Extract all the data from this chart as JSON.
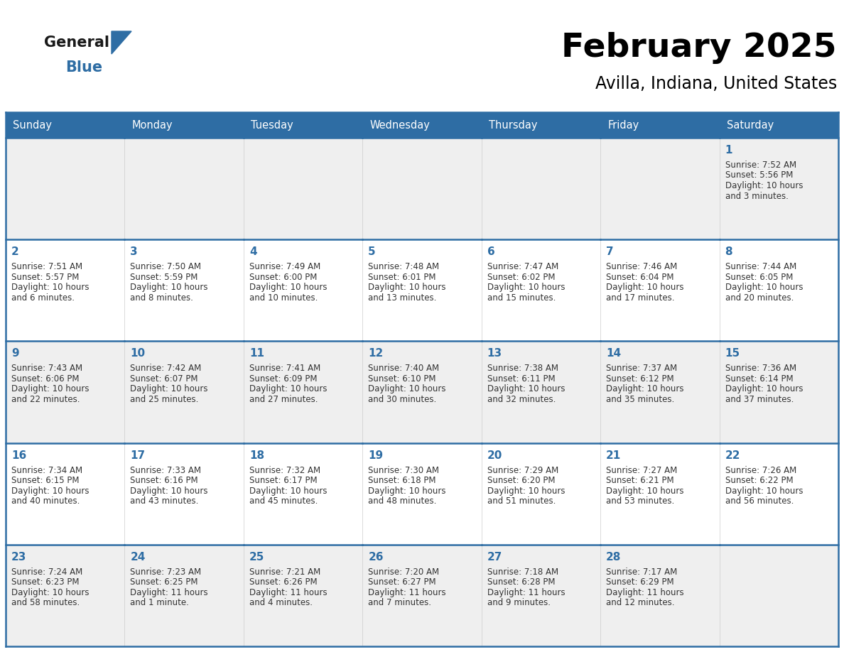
{
  "title": "February 2025",
  "subtitle": "Avilla, Indiana, United States",
  "header_bg": "#2E6DA4",
  "header_text_color": "#FFFFFF",
  "cell_bg_odd": "#EFEFEF",
  "cell_bg_even": "#FFFFFF",
  "cell_border_color": "#2E6DA4",
  "day_number_color": "#2E6DA4",
  "info_text_color": "#333333",
  "days_of_week": [
    "Sunday",
    "Monday",
    "Tuesday",
    "Wednesday",
    "Thursday",
    "Friday",
    "Saturday"
  ],
  "calendar": [
    [
      null,
      null,
      null,
      null,
      null,
      null,
      1
    ],
    [
      2,
      3,
      4,
      5,
      6,
      7,
      8
    ],
    [
      9,
      10,
      11,
      12,
      13,
      14,
      15
    ],
    [
      16,
      17,
      18,
      19,
      20,
      21,
      22
    ],
    [
      23,
      24,
      25,
      26,
      27,
      28,
      null
    ]
  ],
  "cell_data": {
    "1": {
      "sunrise": "7:52 AM",
      "sunset": "5:56 PM",
      "daylight_hours": "10 hours",
      "daylight_mins": "3 minutes"
    },
    "2": {
      "sunrise": "7:51 AM",
      "sunset": "5:57 PM",
      "daylight_hours": "10 hours",
      "daylight_mins": "6 minutes"
    },
    "3": {
      "sunrise": "7:50 AM",
      "sunset": "5:59 PM",
      "daylight_hours": "10 hours",
      "daylight_mins": "8 minutes"
    },
    "4": {
      "sunrise": "7:49 AM",
      "sunset": "6:00 PM",
      "daylight_hours": "10 hours",
      "daylight_mins": "10 minutes"
    },
    "5": {
      "sunrise": "7:48 AM",
      "sunset": "6:01 PM",
      "daylight_hours": "10 hours",
      "daylight_mins": "13 minutes"
    },
    "6": {
      "sunrise": "7:47 AM",
      "sunset": "6:02 PM",
      "daylight_hours": "10 hours",
      "daylight_mins": "15 minutes"
    },
    "7": {
      "sunrise": "7:46 AM",
      "sunset": "6:04 PM",
      "daylight_hours": "10 hours",
      "daylight_mins": "17 minutes"
    },
    "8": {
      "sunrise": "7:44 AM",
      "sunset": "6:05 PM",
      "daylight_hours": "10 hours",
      "daylight_mins": "20 minutes"
    },
    "9": {
      "sunrise": "7:43 AM",
      "sunset": "6:06 PM",
      "daylight_hours": "10 hours",
      "daylight_mins": "22 minutes"
    },
    "10": {
      "sunrise": "7:42 AM",
      "sunset": "6:07 PM",
      "daylight_hours": "10 hours",
      "daylight_mins": "25 minutes"
    },
    "11": {
      "sunrise": "7:41 AM",
      "sunset": "6:09 PM",
      "daylight_hours": "10 hours",
      "daylight_mins": "27 minutes"
    },
    "12": {
      "sunrise": "7:40 AM",
      "sunset": "6:10 PM",
      "daylight_hours": "10 hours",
      "daylight_mins": "30 minutes"
    },
    "13": {
      "sunrise": "7:38 AM",
      "sunset": "6:11 PM",
      "daylight_hours": "10 hours",
      "daylight_mins": "32 minutes"
    },
    "14": {
      "sunrise": "7:37 AM",
      "sunset": "6:12 PM",
      "daylight_hours": "10 hours",
      "daylight_mins": "35 minutes"
    },
    "15": {
      "sunrise": "7:36 AM",
      "sunset": "6:14 PM",
      "daylight_hours": "10 hours",
      "daylight_mins": "37 minutes"
    },
    "16": {
      "sunrise": "7:34 AM",
      "sunset": "6:15 PM",
      "daylight_hours": "10 hours",
      "daylight_mins": "40 minutes"
    },
    "17": {
      "sunrise": "7:33 AM",
      "sunset": "6:16 PM",
      "daylight_hours": "10 hours",
      "daylight_mins": "43 minutes"
    },
    "18": {
      "sunrise": "7:32 AM",
      "sunset": "6:17 PM",
      "daylight_hours": "10 hours",
      "daylight_mins": "45 minutes"
    },
    "19": {
      "sunrise": "7:30 AM",
      "sunset": "6:18 PM",
      "daylight_hours": "10 hours",
      "daylight_mins": "48 minutes"
    },
    "20": {
      "sunrise": "7:29 AM",
      "sunset": "6:20 PM",
      "daylight_hours": "10 hours",
      "daylight_mins": "51 minutes"
    },
    "21": {
      "sunrise": "7:27 AM",
      "sunset": "6:21 PM",
      "daylight_hours": "10 hours",
      "daylight_mins": "53 minutes"
    },
    "22": {
      "sunrise": "7:26 AM",
      "sunset": "6:22 PM",
      "daylight_hours": "10 hours",
      "daylight_mins": "56 minutes"
    },
    "23": {
      "sunrise": "7:24 AM",
      "sunset": "6:23 PM",
      "daylight_hours": "10 hours",
      "daylight_mins": "58 minutes"
    },
    "24": {
      "sunrise": "7:23 AM",
      "sunset": "6:25 PM",
      "daylight_hours": "11 hours",
      "daylight_mins": "1 minute"
    },
    "25": {
      "sunrise": "7:21 AM",
      "sunset": "6:26 PM",
      "daylight_hours": "11 hours",
      "daylight_mins": "4 minutes"
    },
    "26": {
      "sunrise": "7:20 AM",
      "sunset": "6:27 PM",
      "daylight_hours": "11 hours",
      "daylight_mins": "7 minutes"
    },
    "27": {
      "sunrise": "7:18 AM",
      "sunset": "6:28 PM",
      "daylight_hours": "11 hours",
      "daylight_mins": "9 minutes"
    },
    "28": {
      "sunrise": "7:17 AM",
      "sunset": "6:29 PM",
      "daylight_hours": "11 hours",
      "daylight_mins": "12 minutes"
    }
  },
  "logo_color_general": "#1A1A1A",
  "logo_color_blue": "#2E6DA4",
  "logo_triangle_color": "#2E6DA4"
}
